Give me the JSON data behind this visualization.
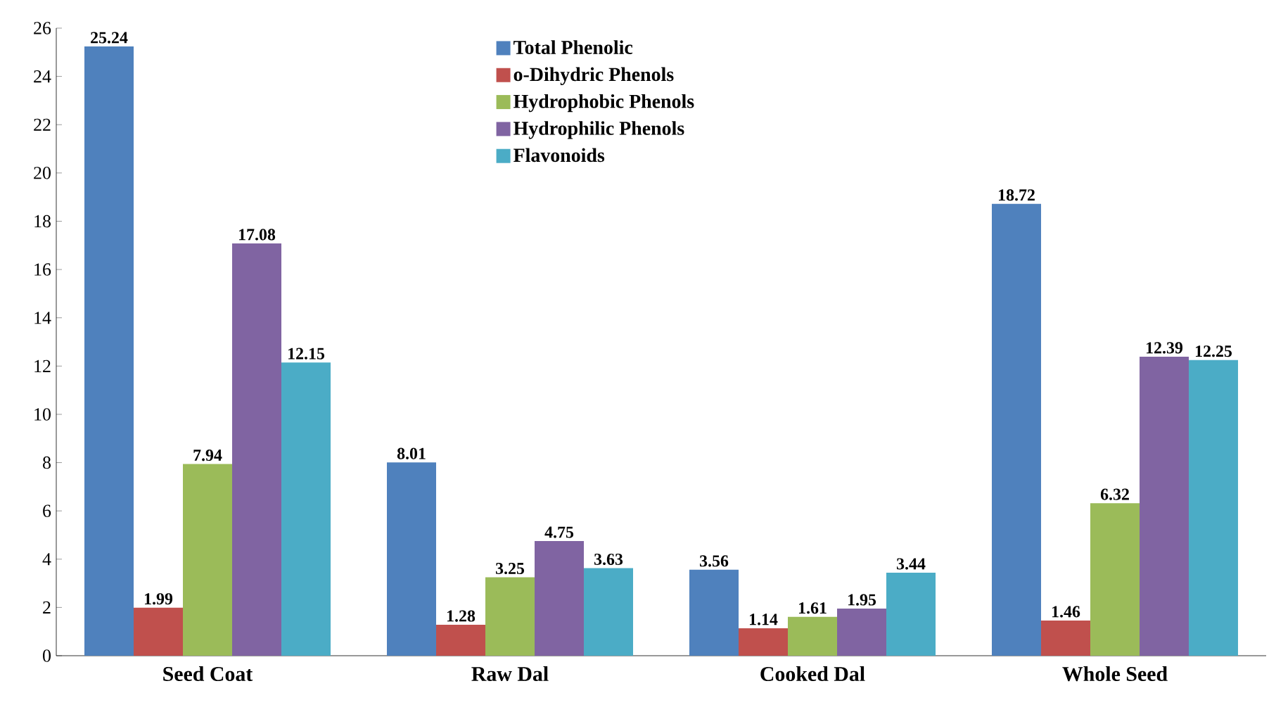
{
  "chart_data": {
    "type": "bar",
    "categories": [
      "Seed Coat",
      "Raw Dal",
      "Cooked Dal",
      "Whole Seed"
    ],
    "series": [
      {
        "name": "Total Phenolic",
        "color": "#4f81bd",
        "values": [
          25.24,
          8.01,
          3.56,
          18.72
        ]
      },
      {
        "name": "o-Dihydric Phenols",
        "color": "#c0504d",
        "values": [
          1.99,
          1.28,
          1.14,
          1.46
        ]
      },
      {
        "name": "Hydrophobic Phenols",
        "color": "#9bbb59",
        "values": [
          7.94,
          3.25,
          1.61,
          6.32
        ]
      },
      {
        "name": "Hydrophilic Phenols",
        "color": "#8064a2",
        "values": [
          17.08,
          4.75,
          1.95,
          12.39
        ]
      },
      {
        "name": "Flavonoids",
        "color": "#4bacc6",
        "values": [
          12.15,
          3.63,
          3.44,
          12.25
        ]
      }
    ],
    "ylim": [
      0,
      26
    ],
    "yticks": [
      0,
      2,
      4,
      6,
      8,
      10,
      12,
      14,
      16,
      18,
      20,
      22,
      24,
      26
    ],
    "data_labels": true,
    "legend": "top",
    "grid": false
  }
}
